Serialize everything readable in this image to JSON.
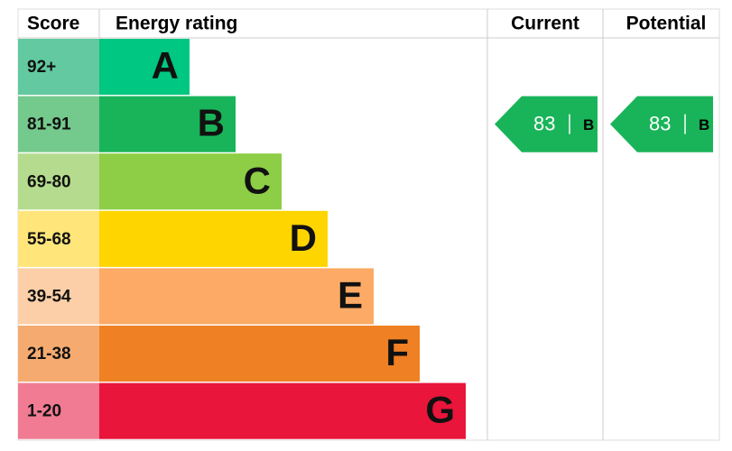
{
  "header": {
    "score": "Score",
    "rating": "Energy rating",
    "current": "Current",
    "potential": "Potential"
  },
  "rows": [
    {
      "score": "92+",
      "band": "A",
      "color": "#00c781",
      "score_color": "#62c9a0"
    },
    {
      "score": "81-91",
      "band": "B",
      "color": "#19b459",
      "score_color": "#74c98c"
    },
    {
      "score": "69-80",
      "band": "C",
      "color": "#8dce46",
      "score_color": "#b5dc8e"
    },
    {
      "score": "55-68",
      "band": "D",
      "color": "#ffd500",
      "score_color": "#ffe57a"
    },
    {
      "score": "39-54",
      "band": "E",
      "color": "#fcaa65",
      "score_color": "#fccfa8"
    },
    {
      "score": "21-38",
      "band": "F",
      "color": "#ef8023",
      "score_color": "#f5ab70"
    },
    {
      "score": "1-20",
      "band": "G",
      "color": "#e9153b",
      "score_color": "#f07b92"
    }
  ],
  "current": {
    "value": 83,
    "band": "B"
  },
  "potential": {
    "value": 83,
    "band": "B"
  }
}
